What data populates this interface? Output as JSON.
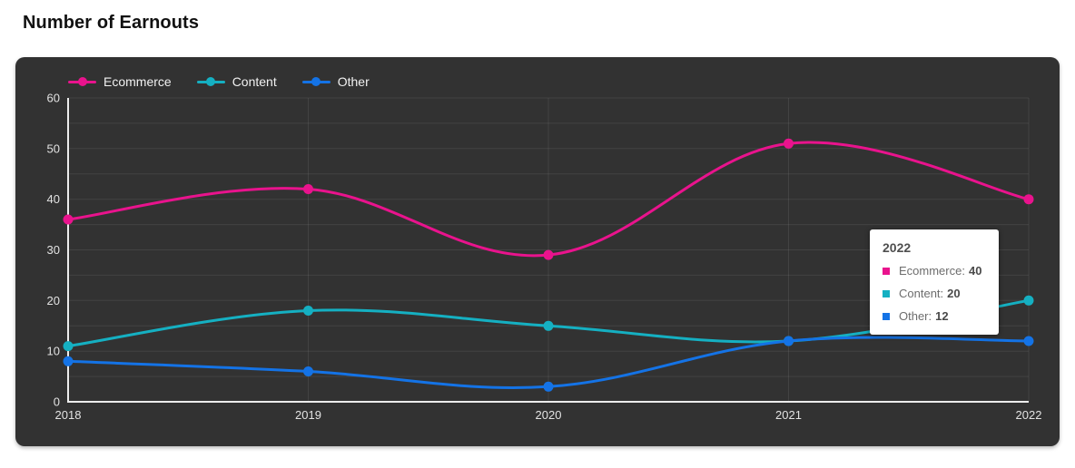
{
  "page": {
    "title": "Number of Earnouts"
  },
  "chart_data": {
    "type": "line",
    "title": "Number of Earnouts",
    "categories": [
      "2018",
      "2019",
      "2020",
      "2021",
      "2022"
    ],
    "series": [
      {
        "name": "Ecommerce",
        "color": "#e9138d",
        "values": [
          36,
          42,
          29,
          51,
          40
        ]
      },
      {
        "name": "Content",
        "color": "#15b0c2",
        "values": [
          11,
          18,
          15,
          12,
          20
        ]
      },
      {
        "name": "Other",
        "color": "#1473e6",
        "values": [
          8,
          6,
          3,
          12,
          12
        ]
      }
    ],
    "xlabel": "",
    "ylabel": "",
    "ylim": [
      0,
      60
    ],
    "y_ticks": [
      0,
      10,
      20,
      30,
      40,
      50,
      60
    ],
    "grid": true,
    "grid_step": 5,
    "legend_position": "top-left",
    "panel_background": "#323232",
    "axis_color": "#ececec",
    "grid_color": "rgba(255,255,255,0.08)",
    "tick_label_color": "#e3e3e3"
  },
  "tooltip": {
    "title": "2022",
    "rows": [
      {
        "label": "Ecommerce",
        "value": "40",
        "color": "#e9138d"
      },
      {
        "label": "Content",
        "value": "20",
        "color": "#15b0c2"
      },
      {
        "label": "Other",
        "value": "12",
        "color": "#1473e6"
      }
    ]
  }
}
